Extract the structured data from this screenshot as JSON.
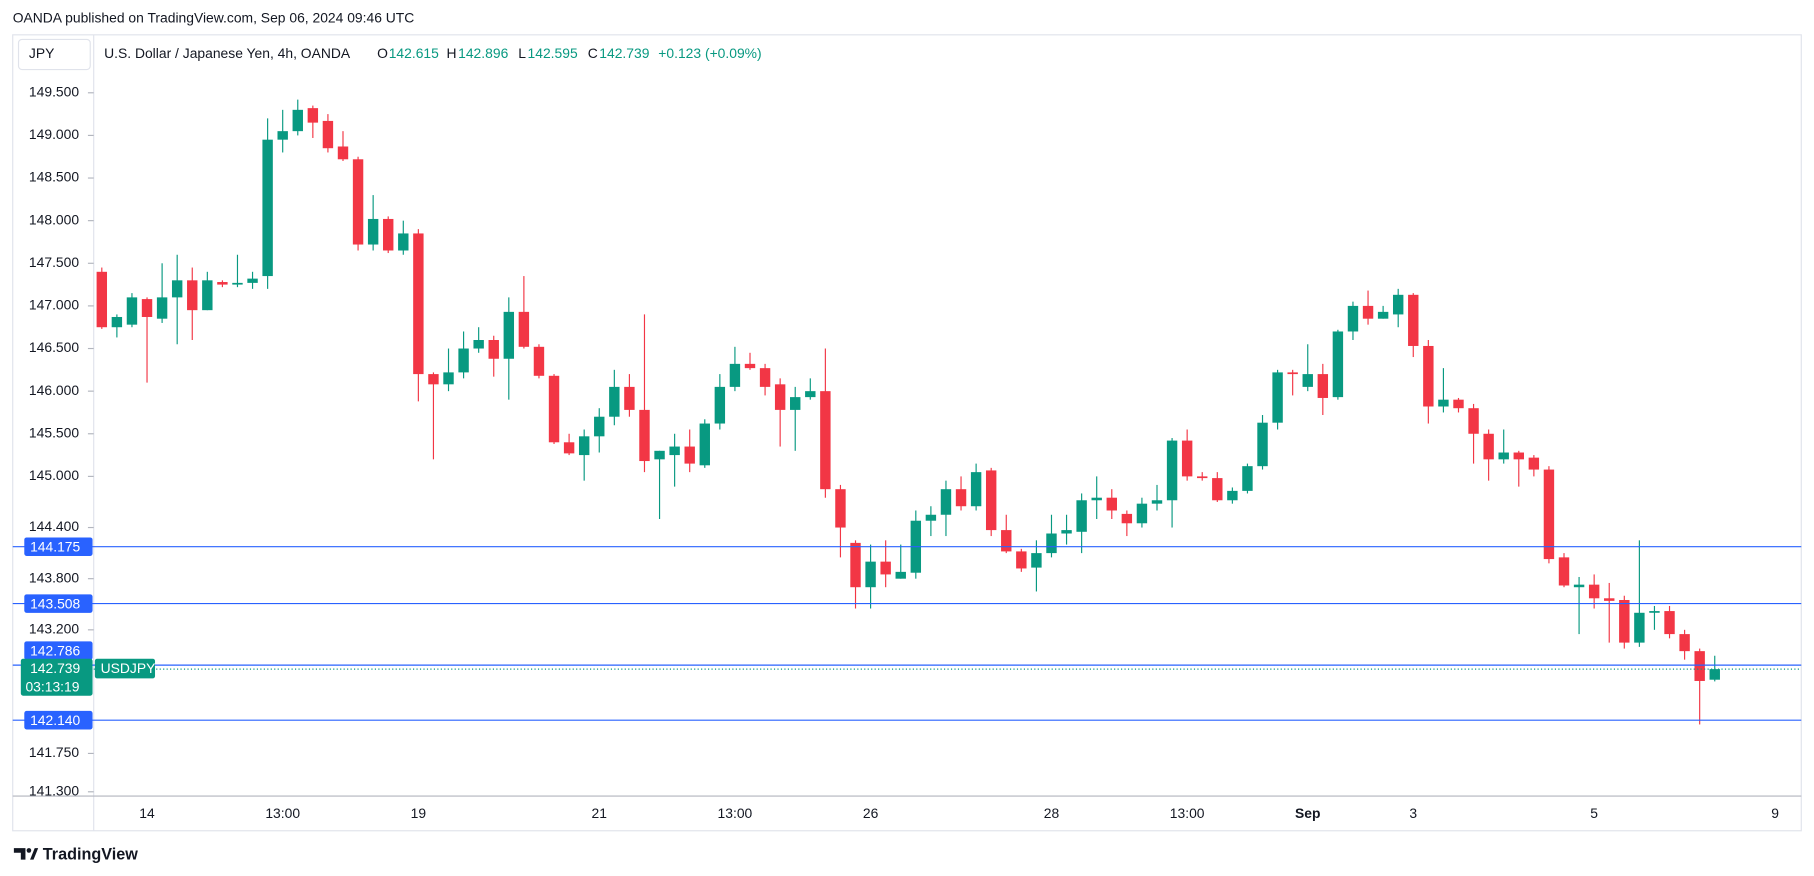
{
  "header": {
    "published": "OANDA published on TradingView.com, Sep 06, 2024 09:46 UTC",
    "currency": "JPY",
    "instrument": "U.S. Dollar / Japanese Yen, 4h, OANDA",
    "open_label": "O",
    "open": "142.615",
    "high_label": "H",
    "high": "142.896",
    "low_label": "L",
    "low": "142.595",
    "close_label": "C",
    "close": "142.739",
    "change": "+0.123 (+0.09%)"
  },
  "footer": {
    "brand": "TradingView"
  },
  "chart_data": {
    "type": "candlestick",
    "categories": [
      null,
      null,
      null,
      "14",
      null,
      null,
      null,
      null,
      null,
      null,
      null,
      null,
      "13:00",
      null,
      null,
      null,
      null,
      null,
      null,
      null,
      null,
      "19",
      null,
      null,
      null,
      null,
      null,
      null,
      null,
      null,
      null,
      null,
      null,
      "21",
      null,
      null,
      null,
      null,
      null,
      null,
      null,
      null,
      "13:00",
      null,
      null,
      null,
      null,
      null,
      null,
      null,
      null,
      "26",
      null,
      null,
      null,
      null,
      null,
      null,
      null,
      null,
      null,
      null,
      null,
      "28",
      null,
      null,
      null,
      null,
      null,
      null,
      null,
      null,
      "13:00",
      null,
      null,
      null,
      null,
      null,
      null,
      null,
      "Sep",
      null,
      null,
      null,
      null,
      null,
      null,
      "3",
      null,
      null,
      null,
      null,
      null,
      null,
      null,
      null,
      null,
      null,
      null,
      "5",
      null,
      null,
      null,
      null,
      null,
      null,
      null,
      null,
      null,
      null,
      null,
      "9"
    ],
    "open": [
      147.4,
      146.75,
      146.78,
      147.08,
      146.85,
      147.1,
      147.3,
      146.95,
      147.28,
      147.25,
      147.27,
      147.35,
      148.95,
      149.05,
      149.32,
      149.17,
      148.87,
      148.72,
      147.72,
      148.02,
      147.65,
      147.85,
      146.2,
      146.08,
      146.22,
      146.5,
      146.6,
      146.38,
      146.93,
      146.52,
      146.18,
      145.4,
      145.25,
      145.47,
      145.7,
      146.05,
      145.78,
      145.2,
      145.25,
      145.35,
      145.13,
      145.62,
      146.05,
      146.32,
      146.27,
      146.08,
      145.78,
      145.93,
      146.0,
      144.85,
      144.22,
      143.7,
      144.0,
      143.8,
      143.87,
      144.48,
      144.55,
      144.85,
      144.65,
      145.07,
      144.37,
      144.12,
      143.93,
      144.1,
      144.33,
      144.35,
      144.72,
      144.75,
      144.56,
      144.45,
      144.68,
      144.72,
      145.42,
      145.0,
      144.98,
      144.72,
      144.83,
      145.12,
      145.63,
      146.22,
      146.05,
      146.2,
      145.93,
      146.7,
      147.0,
      146.85,
      146.9,
      147.13,
      146.53,
      145.82,
      145.9,
      145.8,
      145.5,
      145.2,
      145.28,
      145.22,
      145.08,
      144.05,
      143.7,
      143.73,
      143.57,
      143.55,
      143.05,
      143.4,
      143.42,
      143.15,
      142.95,
      142.615,
      null,
      null,
      null,
      null
    ],
    "high": [
      147.45,
      146.9,
      147.15,
      147.1,
      147.5,
      147.6,
      147.45,
      147.4,
      147.3,
      147.6,
      147.4,
      149.2,
      149.3,
      149.42,
      149.35,
      149.25,
      149.05,
      148.75,
      148.3,
      148.05,
      148.0,
      147.9,
      146.22,
      146.5,
      146.7,
      146.75,
      146.65,
      147.1,
      147.35,
      146.55,
      146.2,
      145.5,
      145.55,
      145.8,
      146.25,
      146.2,
      146.9,
      145.3,
      145.5,
      145.55,
      145.67,
      146.2,
      146.52,
      146.45,
      146.32,
      146.15,
      146.05,
      146.15,
      146.5,
      144.9,
      144.25,
      144.2,
      144.25,
      144.2,
      144.6,
      144.65,
      144.95,
      145.0,
      145.15,
      145.1,
      144.55,
      144.15,
      144.25,
      144.55,
      144.55,
      144.8,
      145.0,
      144.85,
      144.6,
      144.75,
      144.9,
      145.45,
      145.55,
      145.05,
      145.05,
      144.87,
      145.15,
      145.72,
      146.25,
      146.25,
      146.55,
      146.32,
      146.72,
      147.05,
      147.18,
      147.0,
      147.2,
      147.15,
      146.6,
      146.27,
      145.92,
      145.85,
      145.55,
      145.55,
      145.3,
      145.25,
      145.12,
      144.1,
      143.82,
      143.85,
      143.75,
      143.6,
      144.25,
      143.48,
      143.48,
      143.2,
      142.98,
      142.896,
      null,
      null,
      null,
      null
    ],
    "low": [
      146.73,
      146.63,
      146.75,
      146.1,
      146.8,
      146.55,
      146.6,
      146.95,
      147.22,
      147.22,
      147.2,
      147.2,
      148.8,
      149.0,
      148.97,
      148.8,
      148.7,
      147.65,
      147.65,
      147.62,
      147.6,
      145.88,
      145.2,
      146.0,
      146.15,
      146.45,
      146.17,
      145.9,
      146.5,
      146.15,
      145.38,
      145.25,
      144.95,
      145.28,
      145.6,
      145.7,
      145.05,
      144.5,
      144.88,
      145.05,
      145.1,
      145.55,
      146.0,
      146.25,
      145.95,
      145.35,
      145.3,
      145.9,
      144.75,
      144.05,
      143.45,
      143.45,
      143.7,
      143.8,
      143.8,
      144.3,
      144.3,
      144.6,
      144.6,
      144.3,
      144.1,
      143.88,
      143.65,
      144.05,
      144.2,
      144.1,
      144.5,
      144.5,
      144.3,
      144.4,
      144.6,
      144.4,
      144.95,
      144.95,
      144.7,
      144.68,
      144.8,
      145.08,
      145.55,
      145.95,
      146.0,
      145.72,
      145.9,
      146.6,
      146.78,
      146.85,
      146.75,
      146.4,
      145.62,
      145.75,
      145.75,
      145.15,
      144.95,
      145.15,
      144.88,
      145.0,
      143.98,
      143.7,
      143.15,
      143.45,
      143.05,
      142.98,
      143.0,
      143.2,
      143.1,
      142.85,
      142.09,
      142.595,
      null,
      null,
      null,
      null
    ],
    "close": [
      146.75,
      146.87,
      147.1,
      146.87,
      147.1,
      147.3,
      146.95,
      147.3,
      147.25,
      147.27,
      147.32,
      148.95,
      149.05,
      149.3,
      149.15,
      148.85,
      148.72,
      147.72,
      148.02,
      147.65,
      147.85,
      146.2,
      146.08,
      146.22,
      146.5,
      146.6,
      146.38,
      146.93,
      146.52,
      146.18,
      145.4,
      145.27,
      145.47,
      145.7,
      146.05,
      145.78,
      145.18,
      145.3,
      145.35,
      145.15,
      145.62,
      146.05,
      146.32,
      146.27,
      146.05,
      145.78,
      145.93,
      146.0,
      144.85,
      144.4,
      143.7,
      144.0,
      143.85,
      143.88,
      144.48,
      144.55,
      144.85,
      144.65,
      145.05,
      144.37,
      144.12,
      143.92,
      144.1,
      144.33,
      144.37,
      144.72,
      144.75,
      144.6,
      144.45,
      144.68,
      144.72,
      145.42,
      145.0,
      144.98,
      144.72,
      144.83,
      145.12,
      145.63,
      146.22,
      146.2,
      146.2,
      145.92,
      146.7,
      147.0,
      146.85,
      146.93,
      147.13,
      146.53,
      145.82,
      145.9,
      145.8,
      145.5,
      145.2,
      145.28,
      145.2,
      145.08,
      144.03,
      143.72,
      143.73,
      143.57,
      143.54,
      143.05,
      143.4,
      143.42,
      143.15,
      142.95,
      142.6,
      142.739,
      null,
      null,
      null,
      null
    ],
    "up_color": "#089981",
    "down_color": "#f23645",
    "ylim": [
      141.25,
      150.18
    ],
    "yticks": [
      {
        "value": 149.5,
        "label": "149.500"
      },
      {
        "value": 149,
        "label": "149.000"
      },
      {
        "value": 148.5,
        "label": "148.500"
      },
      {
        "value": 148,
        "label": "148.000"
      },
      {
        "value": 147.5,
        "label": "147.500"
      },
      {
        "value": 147,
        "label": "147.000"
      },
      {
        "value": 146.5,
        "label": "146.500"
      },
      {
        "value": 146,
        "label": "146.000"
      },
      {
        "value": 145.5,
        "label": "145.500"
      },
      {
        "value": 145,
        "label": "145.000"
      },
      {
        "value": 144.4,
        "label": "144.400"
      },
      {
        "value": 143.8,
        "label": "143.800"
      },
      {
        "value": 143.2,
        "label": "143.200"
      },
      {
        "value": 141.75,
        "label": "141.750"
      },
      {
        "value": 141.3,
        "label": "141.300"
      }
    ],
    "grid": false,
    "price_lines": [
      {
        "value": 144.175,
        "label": "144.175"
      },
      {
        "value": 143.508,
        "label": "143.508"
      },
      {
        "value": 142.786,
        "label": "142.786"
      },
      {
        "value": 142.14,
        "label": "142.140"
      }
    ],
    "price_line_color": "#2962ff",
    "current_price": {
      "value": 142.739,
      "label": "142.739",
      "symbol": "USDJPY",
      "countdown": "03:13:19"
    }
  }
}
